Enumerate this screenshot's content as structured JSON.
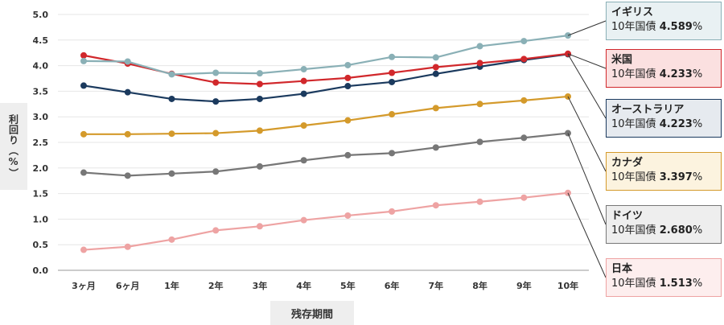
{
  "chart_data": {
    "type": "line",
    "categories": [
      "3ヶ月",
      "6ヶ月",
      "1年",
      "2年",
      "3年",
      "4年",
      "5年",
      "6年",
      "7年",
      "8年",
      "9年",
      "10年"
    ],
    "xlabel": "残存期間",
    "ylabel": "利回り（%）",
    "ylim": [
      0,
      5.0
    ],
    "yticks": [
      "0.0",
      "0.5",
      "1.0",
      "1.5",
      "2.0",
      "2.5",
      "3.0",
      "3.5",
      "4.0",
      "4.5",
      "5.0"
    ],
    "grid": true,
    "legend_placement": "right",
    "series": [
      {
        "name": "イギリス",
        "color": "#8ab0b6",
        "bg": "#e9f1f3",
        "values": [
          4.09,
          4.08,
          3.83,
          3.86,
          3.85,
          3.93,
          4.01,
          4.17,
          4.16,
          4.38,
          4.48,
          4.589
        ]
      },
      {
        "name": "米国",
        "color": "#d1282c",
        "bg": "#fbe0e0",
        "values": [
          4.2,
          4.04,
          3.84,
          3.67,
          3.64,
          3.7,
          3.76,
          3.86,
          3.97,
          4.05,
          4.13,
          4.233
        ]
      },
      {
        "name": "オーストラリア",
        "color": "#1b3a5e",
        "bg": "#e6eaef",
        "values": [
          3.61,
          3.48,
          3.35,
          3.3,
          3.35,
          3.45,
          3.6,
          3.68,
          3.84,
          3.98,
          4.11,
          4.223
        ]
      },
      {
        "name": "カナダ",
        "color": "#d49a2b",
        "bg": "#fcf3df",
        "values": [
          2.66,
          2.66,
          2.67,
          2.68,
          2.73,
          2.83,
          2.93,
          3.05,
          3.17,
          3.25,
          3.32,
          3.397
        ]
      },
      {
        "name": "ドイツ",
        "color": "#777777",
        "bg": "#eeeeee",
        "values": [
          1.91,
          1.85,
          1.89,
          1.93,
          2.03,
          2.15,
          2.25,
          2.29,
          2.4,
          2.51,
          2.59,
          2.68
        ]
      },
      {
        "name": "日本",
        "color": "#eea3a3",
        "bg": "#fdeeee",
        "values": [
          0.4,
          0.46,
          0.6,
          0.78,
          0.86,
          0.98,
          1.07,
          1.15,
          1.27,
          1.34,
          1.42,
          1.513
        ]
      }
    ],
    "legend_entries": [
      {
        "name": "イギリス",
        "sub": "10年国債",
        "value": "4.589",
        "unit": "%"
      },
      {
        "name": "米国",
        "sub": "10年国債",
        "value": "4.233",
        "unit": "%"
      },
      {
        "name": "オーストラリア",
        "sub": "10年国債",
        "value": "4.223",
        "unit": "%"
      },
      {
        "name": "カナダ",
        "sub": "10年国債",
        "value": "3.397",
        "unit": "%"
      },
      {
        "name": "ドイツ",
        "sub": "10年国債",
        "value": "2.680",
        "unit": "%"
      },
      {
        "name": "日本",
        "sub": "10年国債",
        "value": "1.513",
        "unit": "%"
      }
    ]
  }
}
